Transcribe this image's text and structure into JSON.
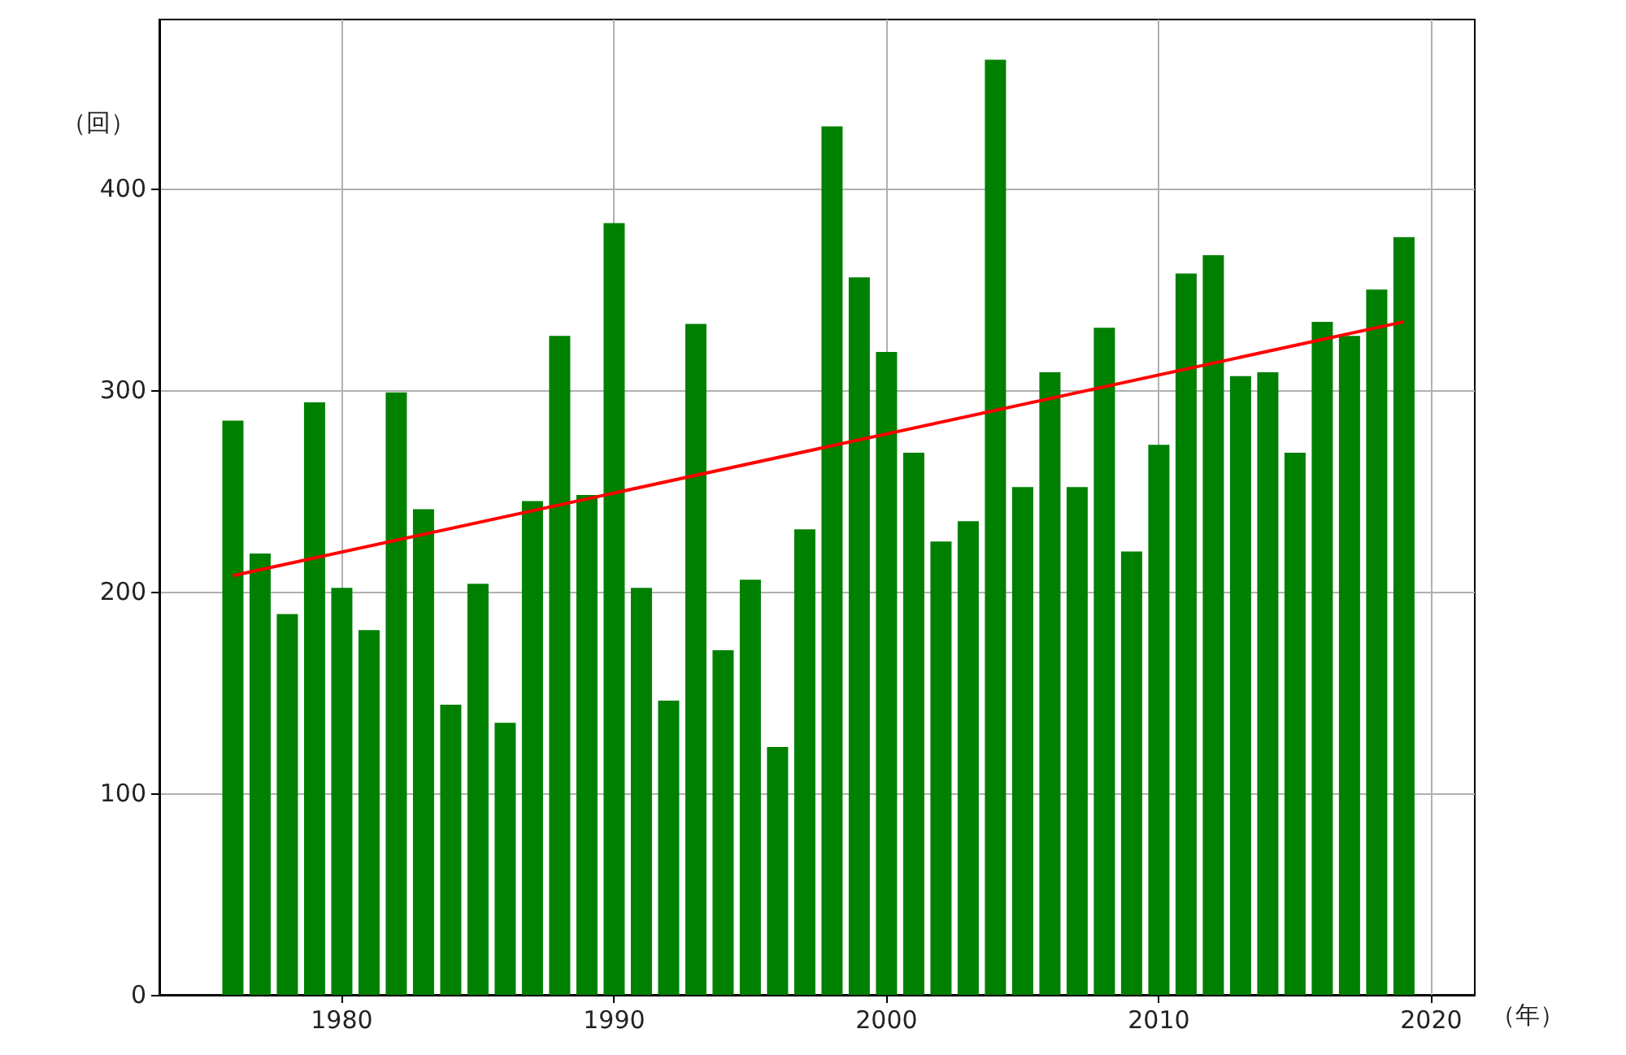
{
  "chart_data": {
    "type": "bar",
    "xlabel": "（年）",
    "ylabel": "（回）",
    "x": [
      1976,
      1977,
      1978,
      1979,
      1980,
      1981,
      1982,
      1983,
      1984,
      1985,
      1986,
      1987,
      1988,
      1989,
      1990,
      1991,
      1992,
      1993,
      1994,
      1995,
      1996,
      1997,
      1998,
      1999,
      2000,
      2001,
      2002,
      2003,
      2004,
      2005,
      2006,
      2007,
      2008,
      2009,
      2010,
      2011,
      2012,
      2013,
      2014,
      2015,
      2016,
      2017,
      2018,
      2019
    ],
    "series": [
      {
        "color": "#008000",
        "values": [
          285,
          219,
          189,
          294,
          202,
          181,
          299,
          241,
          144,
          204,
          135,
          245,
          327,
          248,
          383,
          202,
          146,
          333,
          171,
          206,
          123,
          231,
          431,
          356,
          319,
          269,
          225,
          235,
          464,
          252,
          309,
          252,
          331,
          220,
          273,
          358,
          367,
          307,
          309,
          269,
          334,
          327,
          350,
          376
        ]
      },
      {
        "type": "line",
        "color": "#ff0000",
        "x": [
          1976,
          2019
        ],
        "values": [
          208,
          334
        ]
      }
    ],
    "xlim": [
      1973.3,
      2021.6
    ],
    "xticks": [
      1980,
      1990,
      2000,
      2010,
      2020
    ],
    "ylim": [
      0,
      484
    ],
    "yticks": [
      0,
      100,
      200,
      300,
      400
    ],
    "grid": true,
    "marker": "none",
    "line_style": "solid"
  }
}
